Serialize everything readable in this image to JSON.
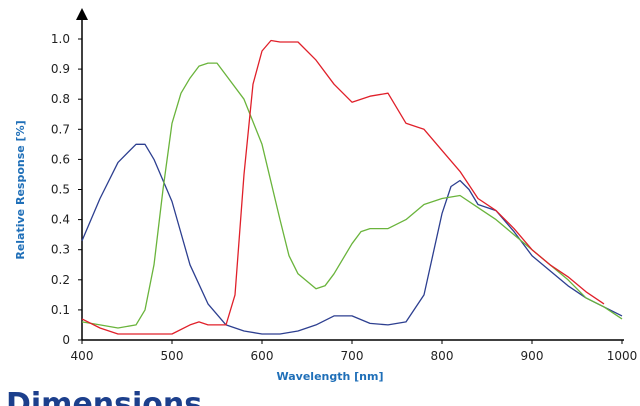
{
  "chart_data": {
    "type": "line",
    "x_label": "Wavelength [nm]",
    "y_label": "Relative Response [%]",
    "xlim": [
      400,
      1000
    ],
    "xticks": [
      400,
      500,
      600,
      700,
      800,
      900,
      1000
    ],
    "ylim": [
      0,
      1
    ],
    "yticks": [
      0,
      0.1,
      0.2,
      0.3,
      0.4,
      0.5,
      0.6,
      0.7,
      0.8,
      0.9,
      {
        "value": 1,
        "label": "1.0"
      }
    ],
    "series": [
      {
        "color": "#2d3f90",
        "x": [
          400,
          420,
          440,
          460,
          470,
          480,
          500,
          520,
          540,
          560,
          580,
          600,
          620,
          640,
          660,
          680,
          700,
          720,
          740,
          760,
          780,
          800,
          810,
          820,
          830,
          840,
          860,
          880,
          900,
          920,
          940,
          960,
          980,
          1000
        ],
        "values": [
          0.33,
          0.47,
          0.59,
          0.65,
          0.65,
          0.6,
          0.46,
          0.25,
          0.12,
          0.05,
          0.03,
          0.02,
          0.02,
          0.03,
          0.05,
          0.08,
          0.08,
          0.055,
          0.05,
          0.06,
          0.15,
          0.42,
          0.51,
          0.53,
          0.5,
          0.45,
          0.43,
          0.36,
          0.28,
          0.23,
          0.18,
          0.14,
          0.11,
          0.08
        ]
      },
      {
        "color": "#6ab43c",
        "x": [
          400,
          420,
          440,
          460,
          470,
          480,
          490,
          500,
          510,
          520,
          530,
          540,
          550,
          560,
          580,
          600,
          620,
          630,
          640,
          660,
          670,
          680,
          700,
          710,
          720,
          740,
          760,
          780,
          800,
          820,
          840,
          860,
          880,
          900,
          920,
          940,
          960,
          980,
          1000
        ],
        "values": [
          0.06,
          0.05,
          0.04,
          0.05,
          0.1,
          0.25,
          0.5,
          0.72,
          0.82,
          0.87,
          0.91,
          0.92,
          0.92,
          0.88,
          0.8,
          0.65,
          0.4,
          0.28,
          0.22,
          0.17,
          0.18,
          0.22,
          0.32,
          0.36,
          0.37,
          0.37,
          0.4,
          0.45,
          0.47,
          0.48,
          0.44,
          0.4,
          0.35,
          0.3,
          0.25,
          0.2,
          0.14,
          0.11,
          0.07
        ]
      },
      {
        "color": "#e0202a",
        "x": [
          400,
          420,
          440,
          460,
          480,
          500,
          520,
          530,
          540,
          560,
          570,
          580,
          590,
          600,
          610,
          620,
          640,
          660,
          680,
          700,
          710,
          720,
          740,
          760,
          780,
          800,
          820,
          840,
          860,
          880,
          900,
          920,
          940,
          960,
          980
        ],
        "values": [
          0.07,
          0.04,
          0.02,
          0.02,
          0.02,
          0.02,
          0.05,
          0.06,
          0.05,
          0.05,
          0.15,
          0.55,
          0.85,
          0.96,
          0.995,
          0.99,
          0.99,
          0.93,
          0.85,
          0.79,
          0.8,
          0.81,
          0.82,
          0.72,
          0.7,
          0.63,
          0.56,
          0.47,
          0.43,
          0.37,
          0.3,
          0.25,
          0.21,
          0.16,
          0.12
        ]
      }
    ]
  },
  "section_heading": "Dimensions"
}
